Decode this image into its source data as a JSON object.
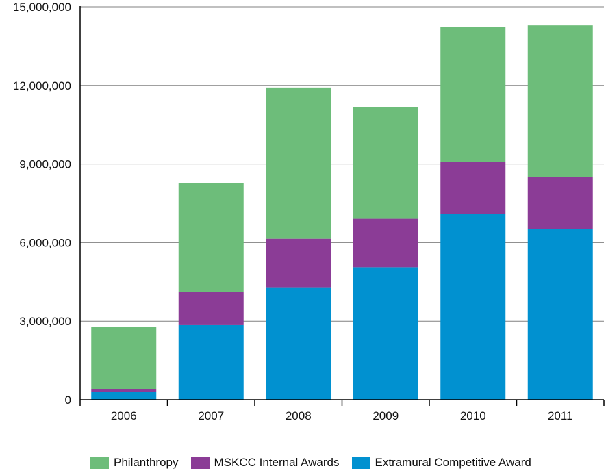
{
  "colors": {
    "philanthropy": "#6dbd7a",
    "internal": "#8b3c96",
    "extramural": "#0191d0",
    "axis": "#000000",
    "grid": "#808080"
  },
  "chart_data": {
    "type": "bar",
    "stacked": true,
    "categories": [
      "2006",
      "2007",
      "2008",
      "2009",
      "2010",
      "2011"
    ],
    "series": [
      {
        "name": "Extramural Competitive Award",
        "color": "#0191d0",
        "values": [
          300000,
          2850000,
          4270000,
          5060000,
          7100000,
          6530000
        ]
      },
      {
        "name": "MSKCC Internal Awards",
        "color": "#8b3c96",
        "values": [
          110000,
          1270000,
          1880000,
          1850000,
          1980000,
          1980000
        ]
      },
      {
        "name": "Philanthropy",
        "color": "#6dbd7a",
        "values": [
          2370000,
          4150000,
          5770000,
          4270000,
          5150000,
          5780000
        ]
      }
    ],
    "yticks": [
      "0",
      "3,000,000",
      "6,000,000",
      "9,000,000",
      "12,000,000",
      "15,000,000"
    ],
    "ylim": [
      0,
      15000000
    ],
    "grid": true,
    "legend_position": "bottom",
    "xlabel": "",
    "ylabel": ""
  },
  "legend": [
    {
      "label": "Philanthropy",
      "color": "#6dbd7a"
    },
    {
      "label": "MSKCC Internal Awards",
      "color": "#8b3c96"
    },
    {
      "label": "Extramural Competitive Award",
      "color": "#0191d0"
    }
  ]
}
